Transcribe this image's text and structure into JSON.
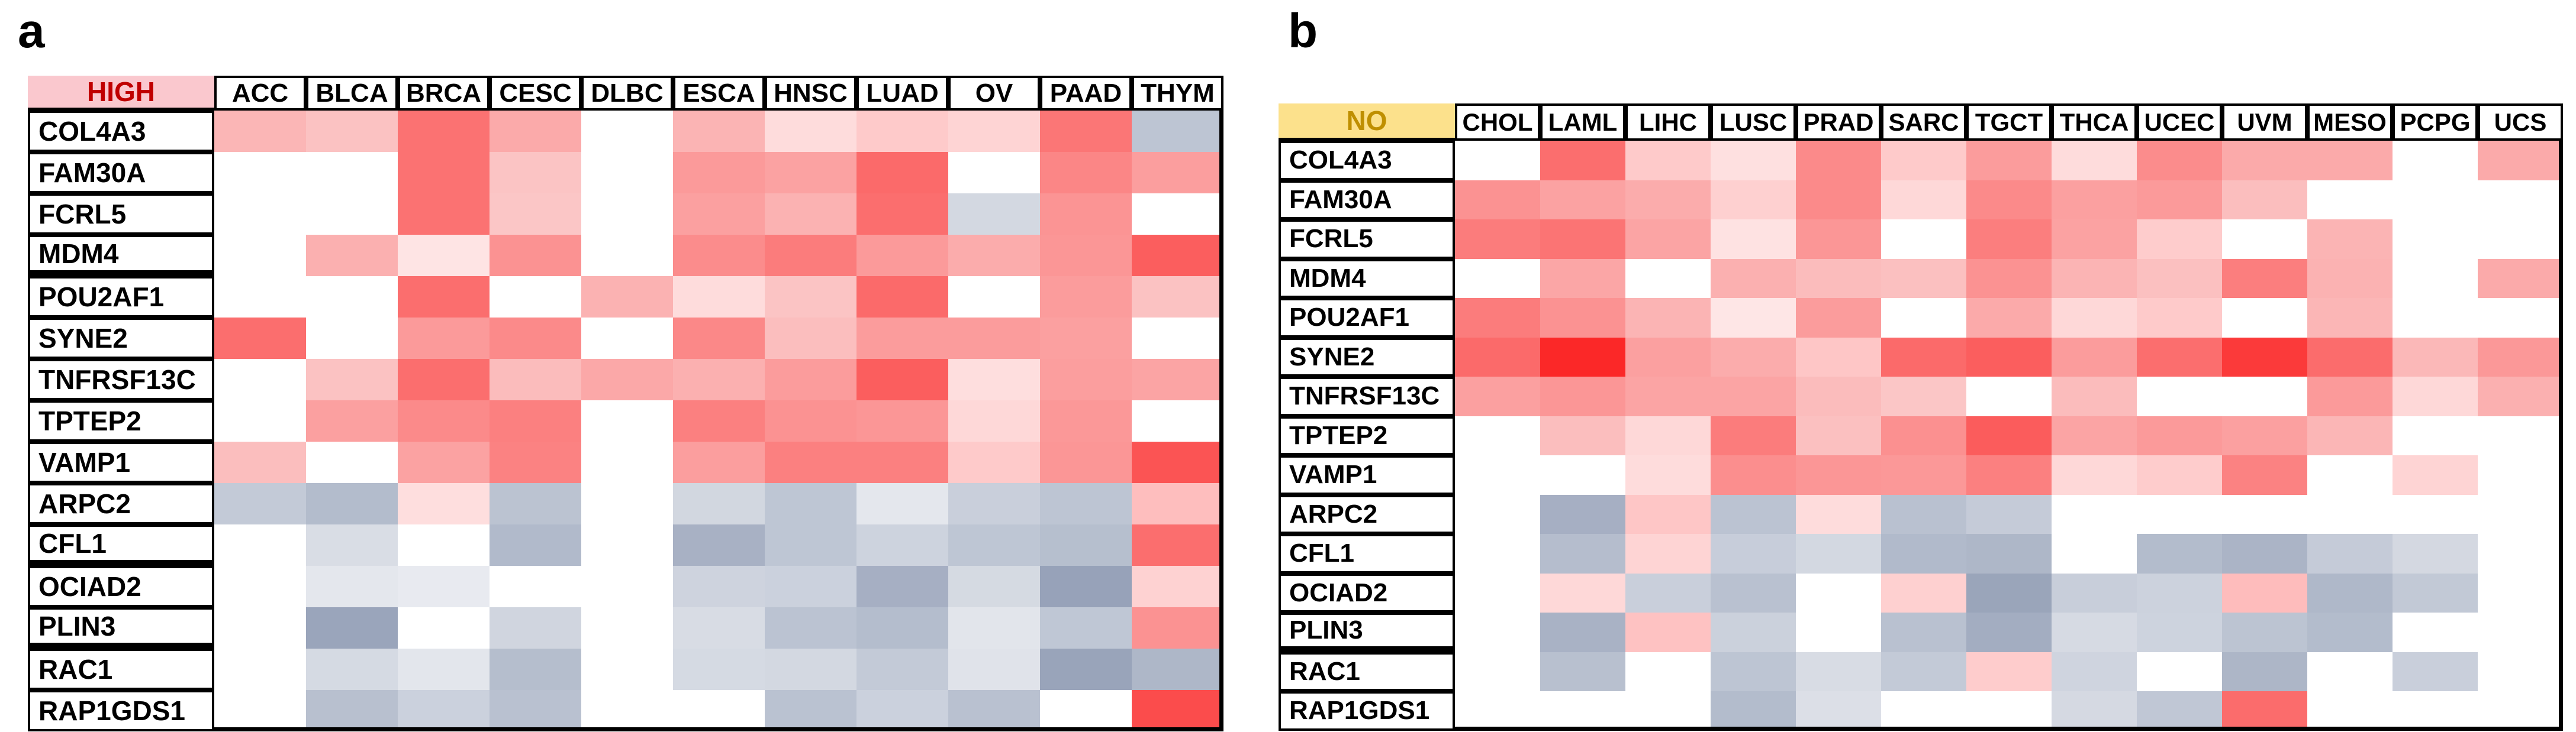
{
  "figure_title": "Gene expression heatmaps by tumor type (figure panels a and b)",
  "value_encoding": "Cells are color-coded only; red tones = high/positive, blue-gray tones = low/negative, white = no value shown. No numeric values are printed in the figure.",
  "chart_data": [
    {
      "type": "heatmap",
      "panel_letter": "a",
      "row_label_header": "HIGH",
      "row_label_header_bg": "#FAC8CE",
      "row_label_header_text_color": "#C00000",
      "legend_position": "none",
      "grid": "black cell borders on header and gene-label columns; data area is borderless color blocks with thick outer right/bottom border",
      "columns": [
        "ACC",
        "BLCA",
        "BRCA",
        "CESC",
        "DLBC",
        "ESCA",
        "HNSC",
        "LUAD",
        "OV",
        "PAAD",
        "THYM"
      ],
      "rows": [
        "COL4A3",
        "FAM30A",
        "FCRL5",
        "MDM4",
        "POU2AF1",
        "SYNE2",
        "TNFRSF13C",
        "TPTEP2",
        "VAMP1",
        "ARPC2",
        "CFL1",
        "OCIAD2",
        "PLIN3",
        "RAC1",
        "RAP1GDS1"
      ],
      "thick_separators_after_rows": [
        "MDM4",
        "CFL1",
        "PLIN3"
      ],
      "cell_colors": [
        [
          "#FBB6B6",
          "#FBC2C2",
          "#FB7272",
          "#FBAAAA",
          "",
          "#FBB4B4",
          "#FEDCDC",
          "#FECACA",
          "#FED4D4",
          "#FB7676",
          "#BDC5D3"
        ],
        [
          "",
          "",
          "#FB7272",
          "#FBC4C4",
          "",
          "#FB9A9A",
          "#FBA2A2",
          "#FB6A6A",
          "",
          "#FB8686",
          "#FB9E9E"
        ],
        [
          "",
          "",
          "#FB7272",
          "#FBC6C6",
          "",
          "#FBA0A0",
          "#FBB2B2",
          "#FB6E6E",
          "#D3D8E1",
          "#FB9494",
          ""
        ],
        [
          "",
          "#FBB0B0",
          "#FEE4E4",
          "#FB9292",
          "",
          "#FB8C8C",
          "#FB7C7C",
          "#FB9A9A",
          "#FBACAC",
          "#FB9696",
          "#FB5E5E"
        ],
        [
          "",
          "",
          "#FB6E6E",
          "",
          "#FBB2B2",
          "#FEDCDC",
          "#FBC4C4",
          "#FB6A6A",
          "",
          "#FB9C9C",
          "#FBC2C2"
        ],
        [
          "#FB6E6E",
          "",
          "#FB9A9A",
          "#FB8A8A",
          "",
          "#FB8888",
          "#FBBEBE",
          "#FB9C9C",
          "#FB9C9C",
          "#FBA0A0",
          ""
        ],
        [
          "",
          "#FBC2C2",
          "#FB6E6E",
          "#FBBCBC",
          "#FBA8A8",
          "#FBB0B0",
          "#FB9C9C",
          "#FB5E5E",
          "#FEDEDE",
          "#FB9E9E",
          "#FBA4A4"
        ],
        [
          "",
          "#FBA0A0",
          "#FB8A8A",
          "#FB8080",
          "",
          "#FB8080",
          "#FB9292",
          "#FB9696",
          "#FED8D8",
          "#FB9898",
          ""
        ],
        [
          "#FBBEBE",
          "",
          "#FBA2A2",
          "#FB8282",
          "",
          "#FB9E9E",
          "#FB8080",
          "#FB8080",
          "#FECACA",
          "#FB9696",
          "#FB5454"
        ],
        [
          "#C3CAD7",
          "#B3BCCC",
          "#FEDEDE",
          "#BBC3D1",
          "",
          "#D2D7E0",
          "#BEC6D4",
          "#E4E7ED",
          "#C9CFDB",
          "#BDC5D3",
          "#FEBEBE"
        ],
        [
          "",
          "#D9DDE5",
          "",
          "#B1BACB",
          "",
          "#A8B1C4",
          "#BEC6D4",
          "#CDD3DE",
          "#BEC6D4",
          "#B6BFCE",
          "#FB6E6E"
        ],
        [
          "",
          "#E4E7ED",
          "#E8EAF0",
          "",
          "",
          "#CED3DE",
          "#CBD1DD",
          "#A6AFC3",
          "#D5DAE2",
          "#97A2B9",
          "#FED2D2"
        ],
        [
          "",
          "#9AA5BB",
          "",
          "#D0D5DF",
          "",
          "#D8DCE4",
          "#BBC3D2",
          "#B4BDCD",
          "#E2E5EB",
          "#BFC7D5",
          "#FB9292"
        ],
        [
          "",
          "#D5DAE3",
          "#E3E6EC",
          "#B5BECD",
          "",
          "#D5DAE3",
          "#D3D8E1",
          "#C3CAD7",
          "#E0E3EA",
          "#99A4BA",
          "#AEB7C8"
        ],
        [
          "",
          "#B8C0CF",
          "#CBD1DD",
          "#B9C1D0",
          "",
          "",
          "#BAC2D1",
          "#CBD1DD",
          "#B9C1D0",
          "",
          "#FB4C4C"
        ]
      ]
    },
    {
      "type": "heatmap",
      "panel_letter": "b",
      "row_label_header": "NO",
      "row_label_header_bg": "#FCE18C",
      "row_label_header_text_color": "#BF8F00",
      "legend_position": "none",
      "grid": "black cell borders on header and gene-label columns; data area is borderless color blocks with thick outer right/bottom border",
      "columns": [
        "CHOL",
        "LAML",
        "LIHC",
        "LUSC",
        "PRAD",
        "SARC",
        "TGCT",
        "THCA",
        "UCEC",
        "UVM",
        "MESO",
        "PCPG",
        "UCS"
      ],
      "rows": [
        "COL4A3",
        "FAM30A",
        "FCRL5",
        "MDM4",
        "POU2AF1",
        "SYNE2",
        "TNFRSF13C",
        "TPTEP2",
        "VAMP1",
        "ARPC2",
        "CFL1",
        "OCIAD2",
        "PLIN3",
        "RAC1",
        "RAP1GDS1"
      ],
      "thick_separators_after_rows": [
        "PLIN3"
      ],
      "cell_colors": [
        [
          "",
          "#FB6E6E",
          "#FECACA",
          "#FEE0E0",
          "#FB8A8A",
          "#FECACA",
          "#FB9C9C",
          "#FEDCDC",
          "#FB8C8C",
          "#FBAAAA",
          "#FBAAAA",
          "",
          "#FBAAAA"
        ],
        [
          "#FB9292",
          "#FBA2A2",
          "#FBACAC",
          "#FED0D0",
          "#FB8A8A",
          "#FED8D8",
          "#FB8A8A",
          "#FBA0A0",
          "#FB9A9A",
          "#FBBEBE",
          "",
          "",
          ""
        ],
        [
          "#FB7C7C",
          "#FB7474",
          "#FBA4A4",
          "#FEE2E2",
          "#FB9696",
          "",
          "#FB7E7E",
          "#FBA2A2",
          "#FECCCC",
          "",
          "#FBB4B4",
          "",
          ""
        ],
        [
          "",
          "#FBA6A6",
          "",
          "#FBB0B0",
          "#FBBCBC",
          "#FBC0C0",
          "#FB9292",
          "#FBB4B4",
          "#FBC0C0",
          "#FB7E7E",
          "#FBB2B2",
          "",
          "#FBAAAA"
        ],
        [
          "#FB7C7C",
          "#FB9292",
          "#FBB4B4",
          "#FEE6E6",
          "#FB9C9C",
          "",
          "#FBAAAA",
          "#FED8D8",
          "#FECACA",
          "",
          "#FBB6B6",
          "",
          ""
        ],
        [
          "#FB6A6A",
          "#FB2828",
          "#FBA0A0",
          "#FBACAC",
          "#FEC6C6",
          "#FB6A6A",
          "#FB5E5E",
          "#FB9C9C",
          "#FB6E6E",
          "#FB3A3A",
          "#FB6C6C",
          "#FBB8B8",
          "#FB9898"
        ],
        [
          "#FBA0A0",
          "#FB9696",
          "#FBA4A4",
          "#FBA4A4",
          "#FBBCBC",
          "#FBC6C6",
          "",
          "#FBBCBC",
          "",
          "",
          "#FB9A9A",
          "#FED8D8",
          "#FBB0B0"
        ],
        [
          "",
          "#FBBEBE",
          "#FED8D8",
          "#FB7C7C",
          "#FBC0C0",
          "#FB9090",
          "#FB5C5C",
          "#FBA4A4",
          "#FB9A9A",
          "#FBA0A0",
          "#FBB6B6",
          "",
          ""
        ],
        [
          "",
          "",
          "#FEDCDC",
          "#FB8E8E",
          "#FB9696",
          "#FB9898",
          "#FB8080",
          "#FED8D8",
          "#FECCCC",
          "#FB8282",
          "",
          "#FED4D4",
          ""
        ],
        [
          "",
          "#A6AFC3",
          "#FEC6C6",
          "#BBC3D2",
          "#FEDCDC",
          "#B9C1D0",
          "#C5CBD8",
          "",
          "",
          "",
          "",
          "",
          ""
        ],
        [
          "",
          "#B5BDCD",
          "#FED4D4",
          "#C7CDDA",
          "#D3D8E1",
          "#B1BACB",
          "#AEB7C8",
          "",
          "#B3BCCC",
          "#ABB4C6",
          "#C5CBD8",
          "#D4D8E1",
          ""
        ],
        [
          "",
          "#FED8D8",
          "#C9CFDB",
          "#B9C1D0",
          "",
          "#FED0D0",
          "#9AA5BA",
          "#C8CEDA",
          "#CCD2DD",
          "#FEBCBC",
          "#AFB8C9",
          "#C2C9D6",
          ""
        ],
        [
          "",
          "#A9B2C5",
          "#FEC2C2",
          "#CBD1DC",
          "",
          "#B9C1D0",
          "#A3ADC1",
          "#D6DAE3",
          "#CDD3DE",
          "#BCC4D2",
          "#B3BCCC",
          "",
          ""
        ],
        [
          "",
          "#B8C0CF",
          "",
          "#BDC5D3",
          "#D8DCE4",
          "#C3CAD7",
          "#FECCCC",
          "#CFD4DF",
          "",
          "#ADB6C7",
          "",
          "#C9CFDB",
          ""
        ],
        [
          "",
          "",
          "",
          "#B3BCCC",
          "#DCDFE7",
          "",
          "",
          "#D5D9E2",
          "#C0C7D5",
          "#FB6C6C",
          "",
          "",
          ""
        ]
      ]
    }
  ]
}
